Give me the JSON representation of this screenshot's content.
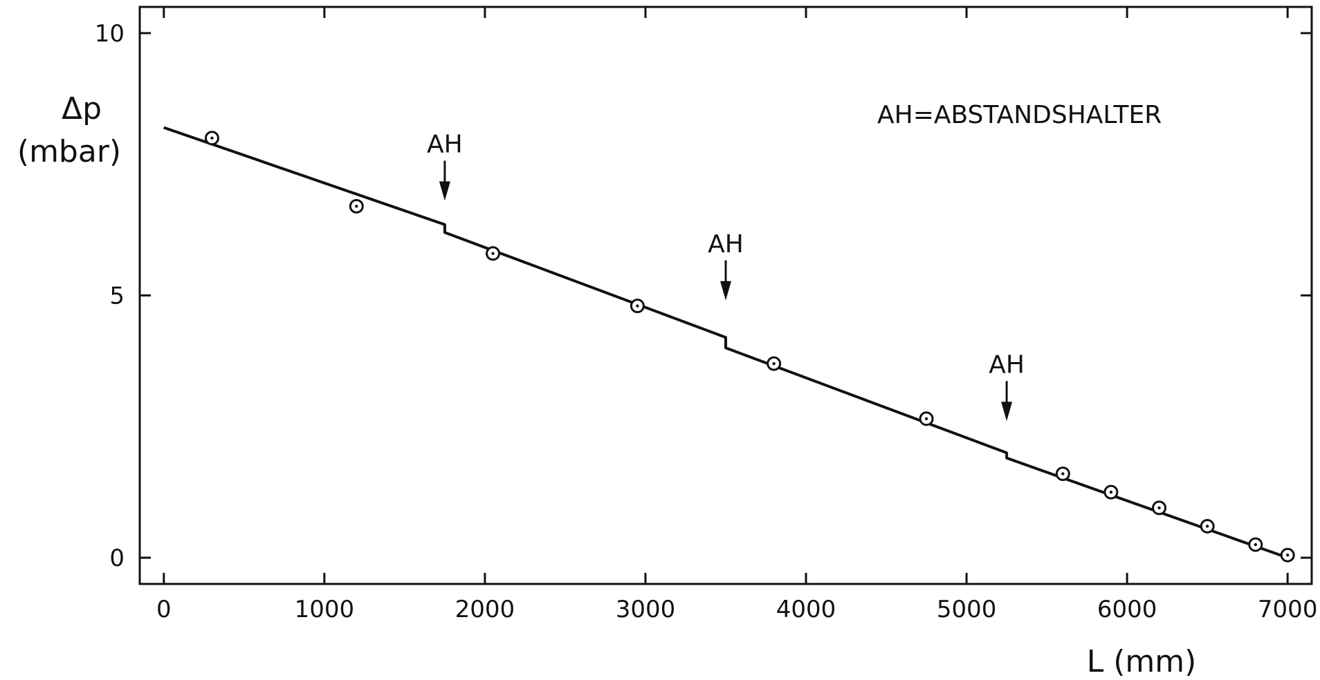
{
  "chart_data": {
    "type": "line",
    "xlabel": "L (mm)",
    "ylabel": "Δp",
    "ylabel_unit": "(mbar)",
    "xlim": [
      -150,
      7150
    ],
    "ylim": [
      -0.5,
      10.5
    ],
    "x_ticks": [
      0,
      1000,
      2000,
      3000,
      4000,
      5000,
      6000,
      7000
    ],
    "x_tick_labels": [
      "0",
      "1000",
      "2000",
      "3000",
      "4000",
      "5000",
      "6000",
      "7000"
    ],
    "y_ticks": [
      0,
      5,
      10
    ],
    "y_tick_labels": [
      "0",
      "5",
      "10"
    ],
    "grid": false,
    "series": [
      {
        "kind": "line",
        "x": [
          0,
          1750,
          1750,
          3500,
          3500,
          5250,
          5250,
          7000
        ],
        "y": [
          8.2,
          6.35,
          6.2,
          4.2,
          4.0,
          2.0,
          1.9,
          0.0
        ]
      },
      {
        "kind": "scatter",
        "marker": "circle-dot",
        "x": [
          300,
          1200,
          2050,
          2950,
          3800,
          4750,
          5600,
          5900,
          6200,
          6500,
          6800,
          7000
        ],
        "y": [
          8.0,
          6.7,
          5.8,
          4.8,
          3.7,
          2.65,
          1.6,
          1.25,
          0.95,
          0.6,
          0.25,
          0.05
        ]
      }
    ],
    "annotations": [
      {
        "text": "AH",
        "x": 1750,
        "y": 7.7,
        "arrow": "down"
      },
      {
        "text": "AH",
        "x": 3500,
        "y": 5.8,
        "arrow": "down"
      },
      {
        "text": "AH",
        "x": 5250,
        "y": 3.5,
        "arrow": "down"
      }
    ],
    "note": "AH=ABSTANDSHALTER"
  }
}
